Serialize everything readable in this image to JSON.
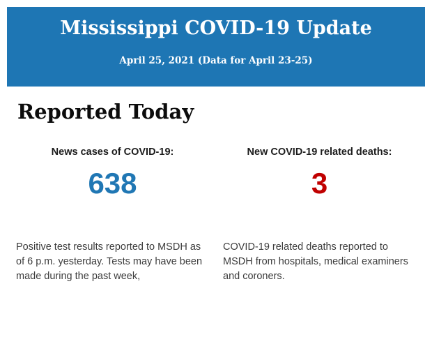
{
  "page": {
    "background_color": "#ffffff"
  },
  "header": {
    "title": "Mississippi COVID-19 Update",
    "subtitle": "April 25, 2021 (Data for April 23-25)",
    "background_color": "#1e76b4",
    "text_color": "#ffffff"
  },
  "main": {
    "heading": "Reported Today",
    "stats": {
      "cases": {
        "label": "News cases of COVID-19:",
        "value": "638",
        "value_color": "#2077b4",
        "description": "Positive test results reported to MSDH as of 6 p.m. yesterday. Tests may have been made during the past week,"
      },
      "deaths": {
        "label": "New COVID-19 related deaths:",
        "value": "3",
        "value_color": "#c00000",
        "description": "COVID-19 related deaths reported to MSDH from hospitals, medical examiners and coroners."
      }
    }
  }
}
